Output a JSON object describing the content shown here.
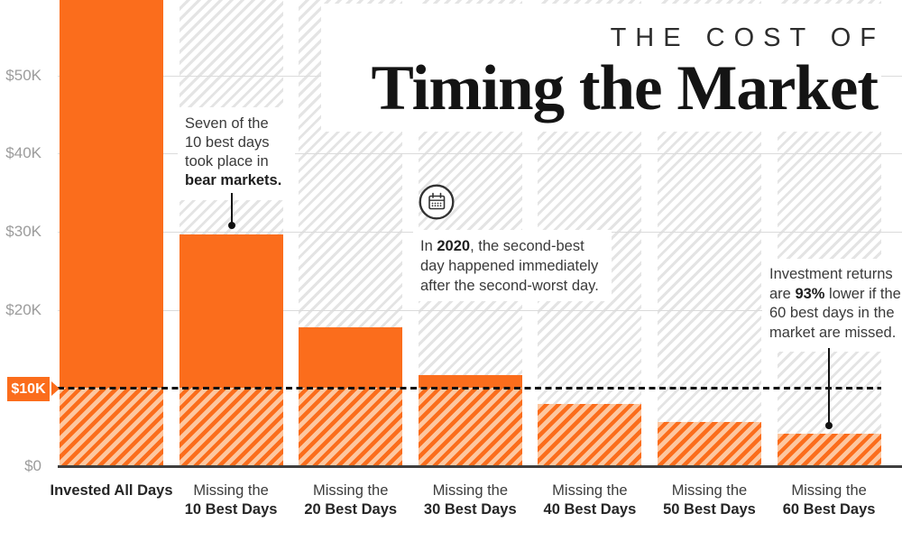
{
  "title": {
    "kicker": "THE COST OF",
    "main": "Timing the Market"
  },
  "colors": {
    "bar_orange": "#FB6D1C",
    "bar_hatch_light": "#FDC7A0",
    "background_hatch_gray": "#E4E4E4",
    "axis_label_gray": "#9C9C9C",
    "text_dark": "#3A3A3A",
    "baseline_black": "#111111"
  },
  "chart_data": {
    "type": "bar",
    "title": "The Cost of Timing the Market",
    "xlabel": "",
    "ylabel": "",
    "grid": "horizontal, light gray",
    "categories": [
      {
        "prefix": "",
        "em": "Invested All Days"
      },
      {
        "prefix": "Missing the",
        "em": "10 Best Days"
      },
      {
        "prefix": "Missing the",
        "em": "20 Best Days"
      },
      {
        "prefix": "Missing the",
        "em": "30 Best Days"
      },
      {
        "prefix": "Missing the",
        "em": "40 Best Days"
      },
      {
        "prefix": "Missing the",
        "em": "50 Best Days"
      },
      {
        "prefix": "Missing the",
        "em": "60 Best Days"
      }
    ],
    "values": [
      65000,
      29700,
      17800,
      11700,
      8000,
      5700,
      4200
    ],
    "values_unit": "USD, read from $-K axis; first bar clipped at top of visible area",
    "y_ticks": [
      {
        "label": "$50K",
        "value": 50000
      },
      {
        "label": "$40K",
        "value": 40000
      },
      {
        "label": "$30K",
        "value": 30000
      },
      {
        "label": "$20K",
        "value": 20000
      },
      {
        "label": "$0",
        "value": 0
      }
    ],
    "baseline": {
      "label": "$10K",
      "value": 10000,
      "style": "black dashed line; bars hatched below this value"
    },
    "ylim_visible": [
      0,
      59600
    ],
    "legend": "none"
  },
  "annotations": [
    {
      "id": "bear-markets",
      "lines": [
        [
          {
            "t": "Seven of the",
            "b": false
          }
        ],
        [
          {
            "t": "10 best days",
            "b": false
          }
        ],
        [
          {
            "t": "took place in",
            "b": false
          }
        ],
        [
          {
            "t": "bear markets.",
            "b": true
          }
        ]
      ]
    },
    {
      "id": "year-2020",
      "icon": "calendar-icon",
      "lines": [
        [
          {
            "t": "In ",
            "b": false
          },
          {
            "t": "2020",
            "b": true
          },
          {
            "t": ", the second-best",
            "b": false
          }
        ],
        [
          {
            "t": "day happened immediately",
            "b": false
          }
        ],
        [
          {
            "t": "after the second-worst day.",
            "b": false
          }
        ]
      ]
    },
    {
      "id": "returns-93",
      "lines": [
        [
          {
            "t": "Investment returns",
            "b": false
          }
        ],
        [
          {
            "t": "are ",
            "b": false
          },
          {
            "t": "93%",
            "b": true
          },
          {
            "t": " lower if the",
            "b": false
          }
        ],
        [
          {
            "t": "60 best days in the",
            "b": false
          }
        ],
        [
          {
            "t": "market are missed.",
            "b": false
          }
        ]
      ]
    }
  ]
}
